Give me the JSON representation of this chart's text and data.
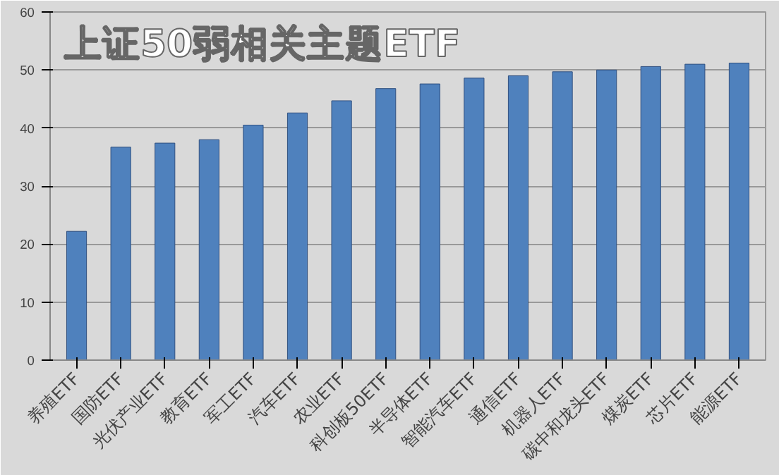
{
  "chart_data": {
    "type": "bar",
    "title": "上证50弱相关主题ETF",
    "categories": [
      "养殖ETF",
      "国防ETF",
      "光伏产业ETF",
      "教育ETF",
      "军工ETF",
      "汽车ETF",
      "农业ETF",
      "科创板50ETF",
      "半导体ETF",
      "智能汽车ETF",
      "通信ETF",
      "机器人ETF",
      "碳中和龙头ETF",
      "煤炭ETF",
      "芯片ETF",
      "能源ETF"
    ],
    "values": [
      22.2,
      36.7,
      37.4,
      38.0,
      40.5,
      42.6,
      44.7,
      46.8,
      47.6,
      48.6,
      49.0,
      49.7,
      50.0,
      50.6,
      51.0,
      51.2
    ],
    "color": "#4f81bd",
    "ylim": [
      0,
      60
    ],
    "yticks": [
      0,
      10,
      20,
      30,
      40,
      50,
      60
    ],
    "grid": "y"
  }
}
